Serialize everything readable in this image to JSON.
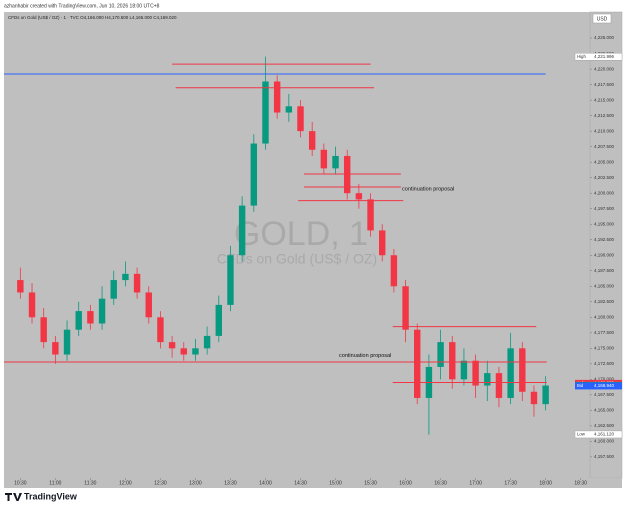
{
  "header": "azhanhabir created with TradingView.com, Jun 10, 2026 18:00 UTC+8",
  "legend": "CFDs on Gold (US$ / OZ) · 1 · TVC  O4,166.000  H4,170.500  L4,165.000  C4,169.020",
  "currency": "USD",
  "footer": "TradingView",
  "chart_data": {
    "type": "candlestick",
    "watermark": {
      "symbol": "GOLD, 1",
      "description": "CFDs on Gold (US$ / OZ)"
    },
    "x": [
      "10:30",
      "10:40",
      "10:50",
      "11:00",
      "11:10",
      "11:20",
      "11:30",
      "11:40",
      "11:50",
      "12:00",
      "12:10",
      "12:20",
      "12:30",
      "12:40",
      "12:50",
      "13:00",
      "13:10",
      "13:20",
      "13:30",
      "13:40",
      "13:50",
      "14:00",
      "14:10",
      "14:20",
      "14:30",
      "14:40",
      "14:50",
      "15:00",
      "15:10",
      "15:20",
      "15:30",
      "15:40",
      "15:50",
      "16:00",
      "16:10",
      "16:20",
      "16:30",
      "16:40",
      "16:50",
      "17:00",
      "17:10",
      "17:20",
      "17:30",
      "17:40",
      "17:50",
      "18:00"
    ],
    "open": [
      4186,
      4184,
      4180,
      4176,
      4174,
      4178,
      4181,
      4179,
      4183,
      4186,
      4187,
      4184,
      4180,
      4176,
      4175,
      4174,
      4175,
      4177,
      4182,
      4190,
      4198,
      4208,
      4218,
      4213,
      4214,
      4210,
      4207,
      4204,
      4206,
      4200,
      4199,
      4194,
      4190,
      4185,
      4178,
      4167,
      4172,
      4176,
      4170,
      4173,
      4169,
      4171,
      4167,
      4175,
      4168,
      4166
    ],
    "high": [
      4188,
      4185.5,
      4181.5,
      4177,
      4179.5,
      4182.5,
      4182,
      4185,
      4187.5,
      4189,
      4188,
      4185,
      4181,
      4177,
      4176,
      4176.5,
      4178.5,
      4183.5,
      4191.5,
      4199.5,
      4209.5,
      4222,
      4219,
      4216,
      4215,
      4211.5,
      4208,
      4207.5,
      4207,
      4201.5,
      4200,
      4195,
      4191,
      4186,
      4179,
      4174,
      4178,
      4177,
      4175,
      4174,
      4173,
      4172,
      4177.5,
      4176,
      4169,
      4170.5
    ],
    "low": [
      4183,
      4179,
      4175,
      4172.5,
      4173,
      4177,
      4178,
      4178,
      4182,
      4185,
      4183,
      4179,
      4175,
      4173.5,
      4173,
      4173,
      4174,
      4176,
      4181,
      4189,
      4197,
      4207,
      4212,
      4211.5,
      4209,
      4206,
      4203,
      4203,
      4199,
      4197.5,
      4193,
      4189,
      4184,
      4176,
      4166,
      4161.1,
      4170,
      4168.5,
      4169,
      4167,
      4166.5,
      4165.5,
      4166,
      4166.5,
      4164,
      4165
    ],
    "close": [
      4184,
      4180,
      4176,
      4174,
      4178,
      4181,
      4179,
      4183,
      4186,
      4187,
      4184,
      4180,
      4176,
      4175,
      4174,
      4175,
      4177,
      4182,
      4190,
      4198,
      4208,
      4218,
      4213,
      4214,
      4210,
      4207,
      4204,
      4206,
      4200,
      4199,
      4194,
      4190,
      4185,
      4178,
      4167,
      4172,
      4176,
      4170,
      4173,
      4169,
      4171,
      4167,
      4175,
      4168,
      4166,
      4169
    ],
    "up_color": "#089981",
    "down_color": "#f23645",
    "xlim": [
      "10:16",
      "18:38"
    ],
    "xticks": [
      "10:30",
      "11:00",
      "11:30",
      "12:00",
      "12:30",
      "13:00",
      "13:30",
      "14:00",
      "14:30",
      "15:00",
      "15:30",
      "16:00",
      "16:30",
      "17:00",
      "17:30",
      "18:00",
      "18:30"
    ],
    "ylim": [
      4154.1,
      4229.2
    ],
    "yticks": [
      {
        "value": 4225,
        "label": "4,225.000"
      },
      {
        "value": 4222.5,
        "label": "4,222.500"
      },
      {
        "value": 4220,
        "label": "4,220.000"
      },
      {
        "value": 4217.5,
        "label": "4,217.500"
      },
      {
        "value": 4215,
        "label": "4,215.000"
      },
      {
        "value": 4212.5,
        "label": "4,212.500"
      },
      {
        "value": 4210,
        "label": "4,210.000"
      },
      {
        "value": 4207.5,
        "label": "4,207.500"
      },
      {
        "value": 4205,
        "label": "4,205.000"
      },
      {
        "value": 4202.5,
        "label": "4,202.500"
      },
      {
        "value": 4200,
        "label": "4,200.000"
      },
      {
        "value": 4197.5,
        "label": "4,197.500"
      },
      {
        "value": 4195,
        "label": "4,195.000"
      },
      {
        "value": 4192.5,
        "label": "4,192.500"
      },
      {
        "value": 4190,
        "label": "4,190.000"
      },
      {
        "value": 4187.5,
        "label": "4,187.500"
      },
      {
        "value": 4185,
        "label": "4,185.000"
      },
      {
        "value": 4182.5,
        "label": "4,182.500"
      },
      {
        "value": 4180,
        "label": "4,180.000"
      },
      {
        "value": 4177.5,
        "label": "4,177.500"
      },
      {
        "value": 4175,
        "label": "4,175.000"
      },
      {
        "value": 4172.5,
        "label": "4,172.500"
      },
      {
        "value": 4170,
        "label": "4,170.000"
      },
      {
        "value": 4167.5,
        "label": "4,167.500"
      },
      {
        "value": 4165,
        "label": "4,165.000"
      },
      {
        "value": 4162.5,
        "label": "4,162.500"
      },
      {
        "value": 4160,
        "label": "4,160.000"
      },
      {
        "value": 4157.5,
        "label": "4,157.500"
      }
    ],
    "price_labels": [
      {
        "name": "High",
        "value": 4221.996,
        "label": "4,221.996",
        "color": "#ffffff"
      },
      {
        "name": "Ask",
        "value": 4169.35,
        "label": "4,169.350",
        "color": "#f23645"
      },
      {
        "name": "GOLD",
        "value": 4169.02,
        "label": "4,169.020",
        "color": "#089981"
      },
      {
        "name": "Bid",
        "value": 4168.94,
        "label": "4,168.940",
        "color": "#2962ff"
      },
      {
        "name": "Low",
        "value": 4161.12,
        "label": "4,161.120",
        "color": "#ffffff"
      }
    ],
    "drawings": [
      {
        "price": 4219.2,
        "from": "10:16",
        "to": "18:00",
        "color": "#2962ff"
      },
      {
        "price": 4220.8,
        "from": "12:40",
        "to": "15:30",
        "color": "#f23645"
      },
      {
        "price": 4217.0,
        "from": "12:43",
        "to": "15:33",
        "color": "#f23645"
      },
      {
        "price": 4203.1,
        "from": "14:33",
        "to": "15:56",
        "color": "#f23645"
      },
      {
        "price": 4201.0,
        "from": "14:33",
        "to": "15:56",
        "color": "#f23645"
      },
      {
        "price": 4198.8,
        "from": "14:28",
        "to": "15:58",
        "color": "#f23645"
      },
      {
        "price": 4178.5,
        "from": "15:49",
        "to": "17:52",
        "color": "#f23645"
      },
      {
        "price": 4172.8,
        "from": "10:16",
        "to": "18:01",
        "color": "#f23645"
      },
      {
        "price": 4169.5,
        "from": "15:49",
        "to": "18:01",
        "color": "#f23645"
      }
    ],
    "annotations": [
      {
        "text": "continuation proposal",
        "price": 4200.7,
        "time": "15:57"
      },
      {
        "text": "continuation proposal",
        "price": 4173.8,
        "time": "15:03"
      }
    ]
  }
}
